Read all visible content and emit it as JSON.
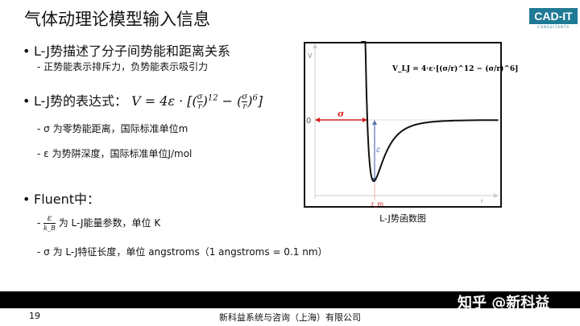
{
  "title": "气体动理论模型输入信息",
  "logo": {
    "text": "CAD-IT",
    "subtext": "CONSULTANTS",
    "color": "#1f7a95"
  },
  "bullets": [
    {
      "text": "L-J势描述了分子间势能和距离关系",
      "subs": [
        "- 正势能表示排斥力，负势能表示吸引力"
      ]
    },
    {
      "text": "L-J势的表达式：",
      "formula": "V = 4ε · [(σ/r)¹² − (σ/r)⁶]",
      "subs": [
        "- σ 为零势能距离，国际标准单位m",
        "- ε 为势阱深度，国际标准单位J/mol"
      ]
    },
    {
      "text": "Fluent中：",
      "subs": [
        "为 L-J能量参数，单位 K",
        "- σ 为 L-J特征长度，单位 angstroms（1 angstroms = 0.1 nm）"
      ]
    }
  ],
  "fluent_frac": {
    "num": "ε",
    "den": "k_B"
  },
  "diagram": {
    "formula": "V_LJ = 4·ε·[(σ/r)^12 − (σ/r)^6]",
    "y_axis_label": "V",
    "x_axis_label": "r",
    "zero_label": "0",
    "sigma_label": "σ",
    "epsilon_label": "ε",
    "rm_label": "r_m",
    "caption": "L-J势函数图",
    "colors": {
      "sigma": "#d42020",
      "epsilon": "#5a6fb5",
      "curve": "#111111"
    }
  },
  "footer": {
    "page": "19",
    "company": "新科益系统与咨询（上海）有限公司",
    "watermark": "知乎 @新科益"
  }
}
